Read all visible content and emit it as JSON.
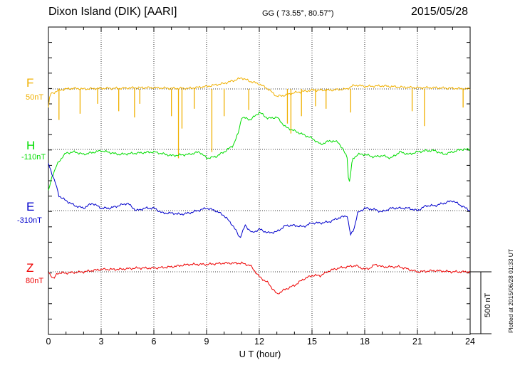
{
  "header": {
    "station": "Dixon Island (DIK)  [AARI]",
    "coords": "GG ( 73.55°,  80.57°)",
    "date": "2015/05/28"
  },
  "footer": {
    "plotted": "Plotted at 2015/06/28 01:33 UT"
  },
  "chart_data": {
    "type": "line",
    "xlabel": "U T (hour)",
    "xlim": [
      0,
      24
    ],
    "xticks": [
      "0",
      "3",
      "6",
      "9",
      "12",
      "15",
      "18",
      "21",
      "24"
    ],
    "scale_bar": "500 nT",
    "colors": {
      "F": "#f0b000",
      "H": "#00dd00",
      "E": "#0000cc",
      "Z": "#ee0000"
    },
    "series": [
      {
        "name": "F",
        "baseline": "50nT",
        "x": [
          0,
          0.1,
          0.3,
          0.6,
          1,
          1.5,
          2,
          3,
          4,
          5,
          6,
          7,
          8,
          9,
          10,
          10.6,
          11,
          11.4,
          12,
          12.5,
          13,
          13.5,
          14,
          15,
          16,
          17,
          17.3,
          17.6,
          18,
          19,
          20,
          21,
          22,
          23,
          24
        ],
        "y": [
          -150,
          -40,
          -30,
          -10,
          0,
          5,
          0,
          5,
          5,
          10,
          10,
          5,
          5,
          20,
          45,
          70,
          90,
          65,
          40,
          0,
          -60,
          -50,
          -30,
          -10,
          -10,
          0,
          25,
          30,
          20,
          25,
          15,
          10,
          10,
          5,
          0
        ],
        "spikes": [
          [
            0.6,
            -250
          ],
          [
            1.8,
            -200
          ],
          [
            2.8,
            -120
          ],
          [
            4,
            -180
          ],
          [
            4.9,
            -230
          ],
          [
            5.2,
            -120
          ],
          [
            7,
            -220
          ],
          [
            7.4,
            -560
          ],
          [
            7.6,
            -320
          ],
          [
            8.3,
            -160
          ],
          [
            9.3,
            -510
          ],
          [
            10,
            -220
          ],
          [
            11.4,
            -170
          ],
          [
            13.6,
            -280
          ],
          [
            13.8,
            -360
          ],
          [
            14.4,
            -220
          ],
          [
            15.2,
            -140
          ],
          [
            15.8,
            -160
          ],
          [
            17.2,
            -190
          ],
          [
            20.7,
            -180
          ],
          [
            21.4,
            -300
          ],
          [
            23.6,
            -150
          ]
        ]
      },
      {
        "name": "H",
        "baseline": "-110nT",
        "x": [
          0,
          0.2,
          0.5,
          0.8,
          1,
          1.5,
          2,
          3,
          4,
          5,
          6,
          7,
          8,
          8.6,
          9,
          9.5,
          10,
          10.5,
          10.8,
          11,
          11.5,
          12,
          12.5,
          13,
          13.5,
          14,
          14.5,
          15,
          15.5,
          16,
          16.5,
          17,
          17.1,
          17.3,
          17.6,
          18,
          18.5,
          19,
          19.5,
          20,
          20.5,
          21,
          21.5,
          22,
          22.5,
          23,
          23.5,
          24
        ],
        "y": [
          -340,
          -220,
          -120,
          -60,
          -30,
          -20,
          -40,
          -10,
          -40,
          -30,
          -20,
          -50,
          -40,
          -20,
          -70,
          -60,
          -20,
          30,
          130,
          260,
          240,
          300,
          250,
          260,
          180,
          150,
          120,
          90,
          40,
          70,
          60,
          -60,
          -300,
          -80,
          -40,
          -40,
          -60,
          -50,
          -70,
          -20,
          -40,
          -20,
          -10,
          -10,
          -40,
          -20,
          0,
          0
        ],
        "spikes": []
      },
      {
        "name": "E",
        "baseline": "-310nT",
        "x": [
          0,
          0.2,
          0.4,
          0.6,
          1,
          1.5,
          2,
          2.5,
          3,
          3.5,
          4,
          4.5,
          5,
          5.5,
          6,
          6.5,
          7,
          7.5,
          8,
          8.5,
          9,
          9.5,
          10,
          10.5,
          10.9,
          11.2,
          11.6,
          12,
          12.5,
          13,
          13.5,
          14,
          14.5,
          15,
          15.5,
          16,
          16.5,
          17,
          17.2,
          17.4,
          17.6,
          18,
          18.5,
          19,
          19.5,
          20,
          20.5,
          21,
          21.5,
          22,
          22.5,
          23,
          23.5,
          24
        ],
        "y": [
          380,
          300,
          220,
          120,
          80,
          40,
          20,
          60,
          20,
          20,
          40,
          60,
          0,
          20,
          20,
          -20,
          -20,
          -30,
          -20,
          0,
          20,
          0,
          -40,
          -120,
          -220,
          -120,
          -180,
          -150,
          -180,
          -170,
          -120,
          -120,
          -130,
          -100,
          -100,
          -90,
          -60,
          -40,
          -200,
          -140,
          -20,
          20,
          10,
          -10,
          20,
          20,
          20,
          0,
          40,
          40,
          60,
          80,
          40,
          0
        ]
      },
      {
        "name": "Z",
        "baseline": "80nT",
        "x": [
          0,
          0.3,
          0.5,
          1,
          2,
          3,
          4,
          5,
          6,
          7,
          8,
          9,
          10,
          11,
          11.5,
          12,
          12.5,
          13,
          13.5,
          14,
          14.5,
          15,
          15.5,
          16,
          16.5,
          17,
          17.5,
          18,
          18.3,
          18.6,
          19,
          20,
          21,
          22,
          23,
          24
        ],
        "y": [
          0,
          -60,
          -10,
          -10,
          0,
          20,
          20,
          30,
          30,
          40,
          60,
          60,
          70,
          70,
          50,
          -40,
          -90,
          -180,
          -140,
          -110,
          -60,
          -30,
          -30,
          10,
          30,
          40,
          50,
          20,
          30,
          60,
          40,
          40,
          0,
          10,
          0,
          0
        ]
      }
    ]
  }
}
